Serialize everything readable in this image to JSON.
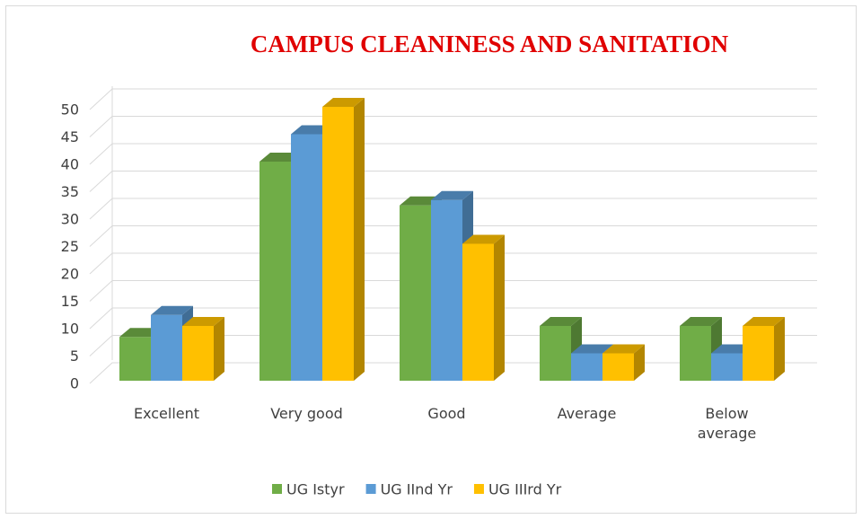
{
  "chart_data": {
    "type": "bar3d",
    "title": "CAMPUS CLEANINESS AND SANITATION",
    "categories": [
      "Excellent",
      "Very good",
      "Good",
      "Average",
      "Below average"
    ],
    "series": [
      {
        "name": "UG Istyr",
        "color": "#70ad47",
        "values": [
          8,
          40,
          32,
          10,
          10
        ]
      },
      {
        "name": "UG IInd Yr",
        "color": "#5b9bd5",
        "values": [
          12,
          45,
          33,
          5,
          5
        ]
      },
      {
        "name": "UG IIIrd Yr",
        "color": "#ffc000",
        "values": [
          10,
          50,
          25,
          5,
          10
        ]
      }
    ],
    "ylim": [
      0,
      50
    ],
    "yticks": [
      0,
      5,
      10,
      15,
      20,
      25,
      30,
      35,
      40,
      45,
      50
    ],
    "grid": true,
    "legend": "bottom"
  }
}
